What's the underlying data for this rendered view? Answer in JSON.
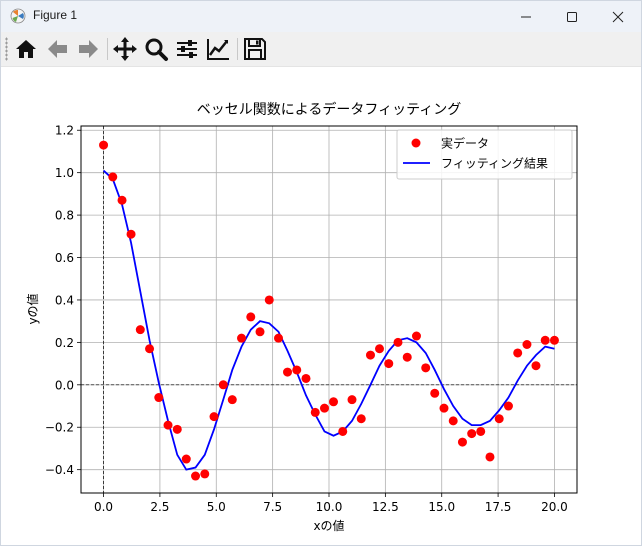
{
  "window": {
    "title": "Figure 1",
    "buttons": [
      "minimize-icon",
      "maximize-icon",
      "close-icon"
    ]
  },
  "toolbar": {
    "tools": [
      {
        "name": "home-icon",
        "tooltip": ""
      },
      {
        "name": "back-arrow-icon",
        "tooltip": ""
      },
      {
        "name": "forward-arrow-icon",
        "tooltip": ""
      },
      {
        "name": "pan-icon",
        "tooltip": ""
      },
      {
        "name": "zoom-icon",
        "tooltip": ""
      },
      {
        "name": "subplots-config-icon",
        "tooltip": ""
      },
      {
        "name": "edit-axes-icon",
        "tooltip": ""
      },
      {
        "name": "save-icon",
        "tooltip": ""
      }
    ]
  },
  "chart_data": {
    "type": "scatter",
    "title": "ベッセル関数によるデータフィッティング",
    "xlabel": "xの値",
    "ylabel": "yの値",
    "xlim": [
      -1.0,
      21.0
    ],
    "ylim": [
      -0.51,
      1.22
    ],
    "xticks": [
      "0.0",
      "2.5",
      "5.0",
      "7.5",
      "10.0",
      "12.5",
      "15.0",
      "17.5",
      "20.0"
    ],
    "xtick_values": [
      0,
      2.5,
      5,
      7.5,
      10,
      12.5,
      15,
      17.5,
      20
    ],
    "yticks": [
      "−0.4",
      "−0.2",
      "0.0",
      "0.2",
      "0.4",
      "0.6",
      "0.8",
      "1.0",
      "1.2"
    ],
    "ytick_values": [
      -0.4,
      -0.2,
      0,
      0.2,
      0.4,
      0.6,
      0.8,
      1.0,
      1.2
    ],
    "grid": true,
    "zero_lines": true,
    "legend": {
      "position": "upper-right",
      "entries": [
        "実データ",
        "フィッティング結果"
      ]
    },
    "series": [
      {
        "name": "実データ",
        "kind": "scatter",
        "color": "#ff0000",
        "x": [
          0.0,
          0.41,
          0.82,
          1.22,
          1.63,
          2.04,
          2.45,
          2.86,
          3.27,
          3.67,
          4.08,
          4.49,
          4.9,
          5.31,
          5.71,
          6.12,
          6.53,
          6.94,
          7.35,
          7.76,
          8.16,
          8.57,
          8.98,
          9.39,
          9.8,
          10.2,
          10.61,
          11.02,
          11.43,
          11.84,
          12.24,
          12.65,
          13.06,
          13.47,
          13.88,
          14.29,
          14.69,
          15.1,
          15.51,
          15.92,
          16.33,
          16.73,
          17.14,
          17.55,
          17.96,
          18.37,
          18.78,
          19.18,
          19.59,
          20.0
        ],
        "y": [
          1.13,
          0.98,
          0.87,
          0.71,
          0.26,
          0.17,
          -0.06,
          -0.19,
          -0.21,
          -0.35,
          -0.43,
          -0.42,
          -0.15,
          0.0,
          -0.07,
          0.22,
          0.32,
          0.25,
          0.4,
          0.22,
          0.06,
          0.07,
          0.03,
          -0.13,
          -0.11,
          -0.08,
          -0.22,
          -0.07,
          -0.16,
          0.14,
          0.17,
          0.1,
          0.2,
          0.13,
          0.23,
          0.08,
          -0.04,
          -0.11,
          -0.17,
          -0.27,
          -0.23,
          -0.22,
          -0.34,
          -0.16,
          -0.1,
          0.15,
          0.19,
          0.09,
          0.21,
          0.21
        ]
      },
      {
        "name": "フィッティング結果",
        "kind": "line",
        "color": "#0000ff",
        "x": [
          0.0,
          0.41,
          0.82,
          1.22,
          1.63,
          2.04,
          2.45,
          2.86,
          3.27,
          3.67,
          4.08,
          4.49,
          4.9,
          5.31,
          5.71,
          6.12,
          6.53,
          6.94,
          7.35,
          7.76,
          8.16,
          8.57,
          8.98,
          9.39,
          9.8,
          10.2,
          10.61,
          11.02,
          11.43,
          11.84,
          12.24,
          12.65,
          13.06,
          13.47,
          13.88,
          14.29,
          14.69,
          15.1,
          15.51,
          15.92,
          16.33,
          16.73,
          17.14,
          17.55,
          17.96,
          18.37,
          18.78,
          19.18,
          19.59,
          20.0
        ],
        "y": [
          1.01,
          0.97,
          0.85,
          0.67,
          0.44,
          0.21,
          0.01,
          -0.17,
          -0.33,
          -0.4,
          -0.39,
          -0.33,
          -0.21,
          -0.07,
          0.07,
          0.18,
          0.26,
          0.3,
          0.29,
          0.25,
          0.16,
          0.06,
          -0.05,
          -0.14,
          -0.22,
          -0.24,
          -0.22,
          -0.17,
          -0.09,
          0.0,
          0.09,
          0.16,
          0.21,
          0.22,
          0.2,
          0.15,
          0.07,
          -0.02,
          -0.1,
          -0.16,
          -0.19,
          -0.19,
          -0.17,
          -0.12,
          -0.06,
          0.02,
          0.09,
          0.14,
          0.18,
          0.17
        ]
      }
    ]
  }
}
